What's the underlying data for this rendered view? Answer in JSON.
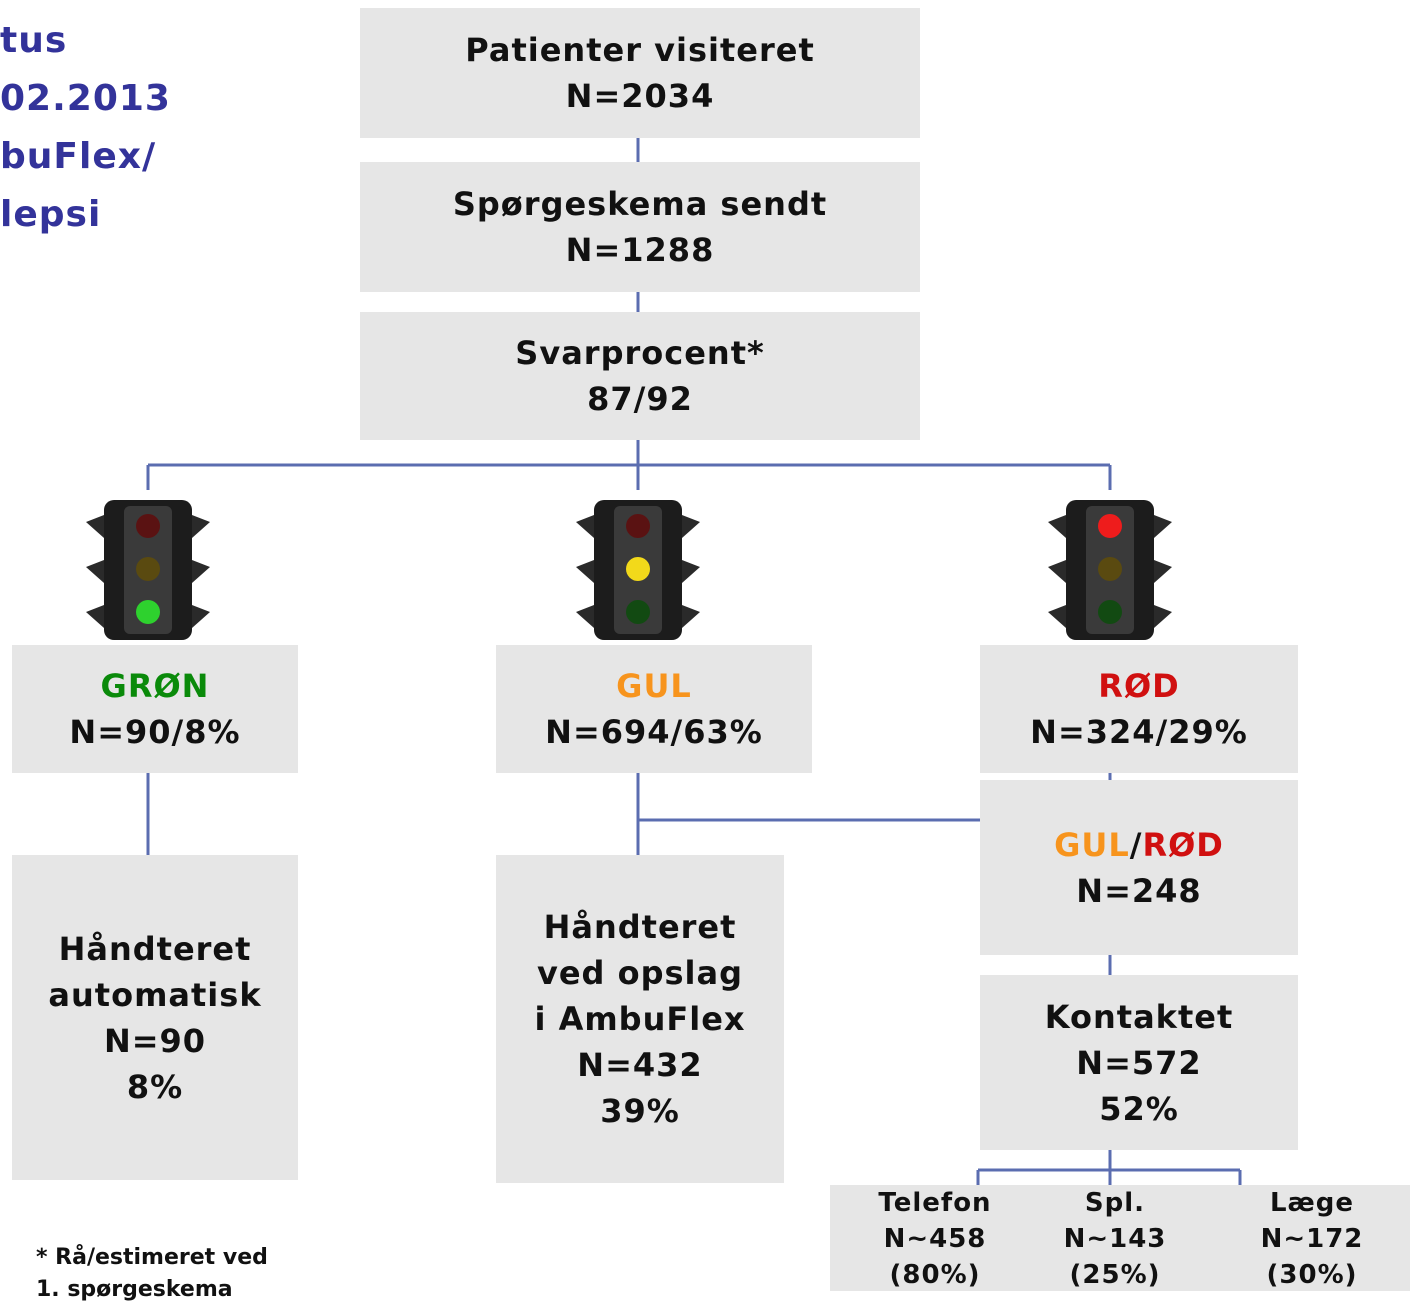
{
  "title": {
    "lines": [
      "tus",
      "02.2013",
      "buFlex/",
      "lepsi"
    ]
  },
  "nodes": [
    {
      "lines": [
        "Patienter visiteret",
        "N=2034"
      ]
    },
    {
      "lines": [
        "Spørgeskema sendt",
        "N=1288"
      ]
    },
    {
      "lines": [
        "Svarprocent*",
        "87/92"
      ]
    },
    {
      "lines": [
        "GRØN",
        "N=90/8%"
      ]
    },
    {
      "lines": [
        "GUL",
        "N=694/63%"
      ]
    },
    {
      "lines": [
        "RØD",
        "N=324/29%"
      ]
    },
    {
      "lines": [
        "Håndteret",
        "automatisk",
        "N=90",
        "8%"
      ]
    },
    {
      "lines": [
        "Håndteret",
        "ved opslag",
        "i AmbuFlex",
        "N=432",
        "39%"
      ]
    },
    {
      "parts": [
        "GUL",
        "/",
        "RØD"
      ],
      "lines": [
        "N=248"
      ]
    },
    {
      "lines": [
        "Kontaktet",
        "N=572",
        "52%"
      ]
    }
  ],
  "contacts": [
    {
      "lines": [
        "Telefon",
        "N~458",
        "(80%)"
      ]
    },
    {
      "lines": [
        "Spl.",
        "N~143",
        "(25%)"
      ]
    },
    {
      "lines": [
        "Læge",
        "N~172",
        "(30%)"
      ]
    }
  ],
  "footnote": {
    "lines": [
      "* Rå/estimeret ved",
      "1. spørgeskema"
    ]
  }
}
